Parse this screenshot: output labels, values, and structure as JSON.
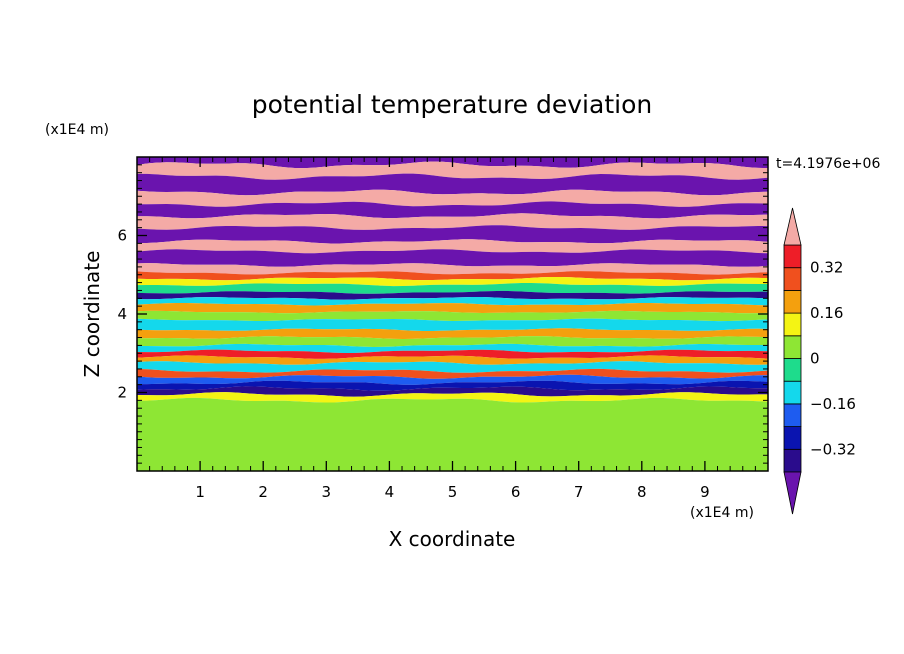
{
  "chart_data": {
    "type": "heatmap",
    "title": "potential temperature deviation",
    "xlabel": "X coordinate",
    "ylabel": "Z coordinate",
    "x_unit": "(x1E4 m)",
    "y_unit": "(x1E4 m)",
    "time_label": "t=4.1976e+06",
    "xlim": [
      0,
      10
    ],
    "ylim": [
      0,
      8
    ],
    "x_ticks": [
      1,
      2,
      3,
      4,
      5,
      6,
      7,
      8,
      9
    ],
    "x_tick_labels": [
      "1",
      "2",
      "3",
      "4",
      "5",
      "6",
      "7",
      "8",
      "9"
    ],
    "y_ticks": [
      2,
      4,
      6
    ],
    "y_tick_labels": [
      "2",
      "4",
      "6"
    ],
    "colorbar": {
      "levels": [
        -0.4,
        -0.32,
        -0.24,
        -0.16,
        -0.08,
        0,
        0.08,
        0.16,
        0.24,
        0.32,
        0.4
      ],
      "colors": [
        "#2a0c8c",
        "#0a14b0",
        "#1e5cf0",
        "#14d8ec",
        "#1edc8c",
        "#8ee634",
        "#f4f414",
        "#f4a00e",
        "#f0501e",
        "#ee1e28"
      ],
      "under_color": "#6a14ae",
      "over_color": "#f4aaa6",
      "tick_values": [
        0.32,
        0.16,
        0,
        -0.16,
        -0.32
      ],
      "tick_labels": [
        "0.32",
        "0.16",
        "0",
        "−0.16",
        "−0.32"
      ]
    },
    "bands": [
      {
        "z": [
          7.8,
          8.0
        ],
        "level": "under"
      },
      {
        "z": [
          7.5,
          7.8
        ],
        "level": "over"
      },
      {
        "z": [
          7.1,
          7.5
        ],
        "level": "under"
      },
      {
        "z": [
          6.8,
          7.1
        ],
        "level": "over"
      },
      {
        "z": [
          6.5,
          6.8
        ],
        "level": "under"
      },
      {
        "z": [
          6.2,
          6.5
        ],
        "level": "over"
      },
      {
        "z": [
          5.85,
          6.2
        ],
        "level": "under"
      },
      {
        "z": [
          5.6,
          5.85
        ],
        "level": "over"
      },
      {
        "z": [
          5.25,
          5.6
        ],
        "level": "under"
      },
      {
        "z": [
          5.05,
          5.25
        ],
        "level": "over"
      },
      {
        "z": [
          4.9,
          5.05
        ],
        "level": 0.24
      },
      {
        "z": [
          4.75,
          4.9
        ],
        "level": 0.12
      },
      {
        "z": [
          4.55,
          4.75
        ],
        "level": -0.04
      },
      {
        "z": [
          4.4,
          4.55
        ],
        "level": -0.36
      },
      {
        "z": [
          4.25,
          4.4
        ],
        "level": -0.12
      },
      {
        "z": [
          4.05,
          4.25
        ],
        "level": 0.2
      },
      {
        "z": [
          3.85,
          4.05
        ],
        "level": 0.04
      },
      {
        "z": [
          3.6,
          3.85
        ],
        "level": -0.12
      },
      {
        "z": [
          3.4,
          3.6
        ],
        "level": 0.2
      },
      {
        "z": [
          3.2,
          3.4
        ],
        "level": 0.04
      },
      {
        "z": [
          3.05,
          3.2
        ],
        "level": -0.12
      },
      {
        "z": [
          2.9,
          3.05
        ],
        "level": 0.36
      },
      {
        "z": [
          2.75,
          2.9
        ],
        "level": 0.2
      },
      {
        "z": [
          2.55,
          2.75
        ],
        "level": -0.12
      },
      {
        "z": [
          2.4,
          2.55
        ],
        "level": 0.28
      },
      {
        "z": [
          2.25,
          2.4
        ],
        "level": -0.2
      },
      {
        "z": [
          2.1,
          2.25
        ],
        "level": -0.28
      },
      {
        "z": [
          1.95,
          2.1
        ],
        "level": -0.36
      },
      {
        "z": [
          1.8,
          1.95
        ],
        "level": 0.12
      },
      {
        "z": [
          0.0,
          1.8
        ],
        "level": 0.04
      }
    ]
  }
}
